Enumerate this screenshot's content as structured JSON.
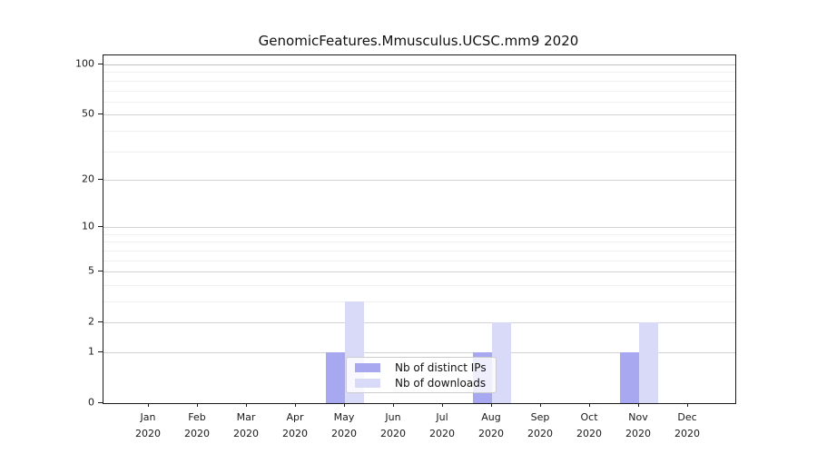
{
  "title": "GenomicFeatures.Mmusculus.UCSC.mm9 2020",
  "legend": {
    "items": [
      {
        "label": "Nb of distinct IPs",
        "color": "#a8a8f0"
      },
      {
        "label": "Nb of downloads",
        "color": "#d9d9f8"
      }
    ]
  },
  "colors": {
    "distinct_ips_bar": "#a8a8f0",
    "downloads_bar": "#d9d9f8",
    "spine": "#1a1a1a",
    "grid_major": "#d2d2d2",
    "grid_minor": "#f0f0f0"
  },
  "chart_data": {
    "type": "bar",
    "title": "GenomicFeatures.Mmusculus.UCSC.mm9 2020",
    "scale": "log1p",
    "categories": [
      "Jan",
      "Feb",
      "Mar",
      "Apr",
      "May",
      "Jun",
      "Jul",
      "Aug",
      "Sep",
      "Oct",
      "Nov",
      "Dec"
    ],
    "category_year": "2020",
    "series": [
      {
        "name": "Nb of distinct IPs",
        "color": "#a8a8f0",
        "values": [
          0,
          0,
          0,
          0,
          1,
          0,
          0,
          1,
          0,
          0,
          1,
          0
        ]
      },
      {
        "name": "Nb of downloads",
        "color": "#d9d9f8",
        "values": [
          0,
          0,
          0,
          0,
          3,
          0,
          0,
          2,
          0,
          0,
          2,
          0
        ]
      }
    ],
    "xlabel": "",
    "ylabel": "",
    "yticks_major": [
      0,
      1,
      2,
      5,
      10,
      20,
      50,
      100
    ],
    "yticks_minor": [
      3,
      4,
      6,
      7,
      8,
      9,
      30,
      40,
      60,
      70,
      80,
      90
    ],
    "ylim": [
      0,
      113
    ],
    "grid": true,
    "legend_position": "lower-center"
  }
}
